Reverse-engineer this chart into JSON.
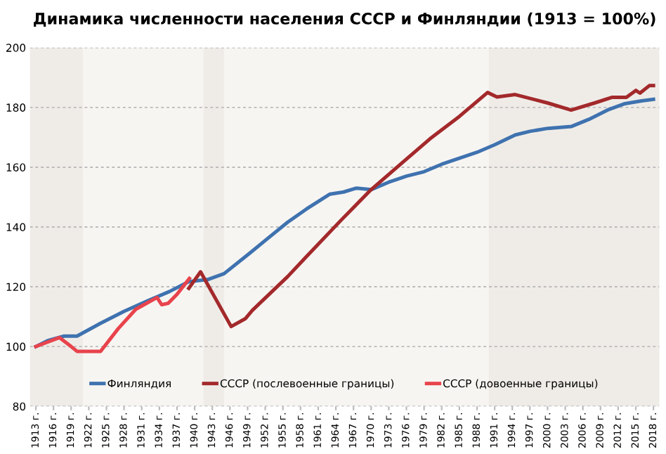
{
  "chart_data": {
    "type": "line",
    "title": "Динамика численности населения СССР и Финляндии (1913 = 100%)",
    "series": [
      {
        "name": "Финляндия",
        "color": "#3f72af",
        "x": [
          1913,
          1915,
          1917.8,
          1920,
          1924,
          1928,
          1932,
          1935.7,
          1939,
          1942.2,
          1945,
          1949.4,
          1952,
          1955.8,
          1959,
          1963,
          1965.3,
          1967.5,
          1970,
          1973,
          1976,
          1979,
          1982,
          1985,
          1988,
          1991,
          1994.5,
          1997,
          2000,
          2004,
          2007,
          2010.4,
          2013,
          2016,
          2018
        ],
        "values": [
          100,
          102,
          103.5,
          103.5,
          107.8,
          111.8,
          115.3,
          118.4,
          121.7,
          122.4,
          124.4,
          131.3,
          135.5,
          141.6,
          146,
          151,
          151.7,
          153,
          152.5,
          155,
          157,
          158.5,
          161,
          163,
          165,
          167.5,
          170.8,
          172,
          173,
          173.6,
          176,
          179.3,
          181.2,
          182.2,
          182.7
        ]
      },
      {
        "name": "СССР (послевоенные границы)",
        "color": "#a3292b",
        "x": [
          1939,
          1941,
          1946.2,
          1948.6,
          1949.8,
          1955.8,
          1958.9,
          1965,
          1970,
          1975,
          1980,
          1985,
          1989.8,
          1991.4,
          1994.5,
          2000,
          2004,
          2008,
          2011,
          2013.4,
          2015,
          2015.7,
          2017.3,
          2018
        ],
        "values": [
          119.5,
          125,
          106.7,
          109.3,
          112.1,
          123.4,
          129.9,
          142.5,
          152.5,
          161,
          169.5,
          177,
          185,
          183.5,
          184.3,
          181.5,
          179.1,
          181.5,
          183.4,
          183.4,
          185.7,
          184.8,
          187.3,
          187.3
        ]
      },
      {
        "name": "СССР (довоенные границы)",
        "color": "#e8434c",
        "x": [
          1913,
          1915,
          1917,
          1919,
          1920,
          1924,
          1927,
          1930,
          1933.6,
          1934.4,
          1935.5,
          1937,
          1939.1
        ],
        "values": [
          100,
          101.5,
          103,
          100,
          98.4,
          98.4,
          106,
          112.5,
          116.4,
          114,
          114.5,
          117.5,
          122.8
        ]
      }
    ],
    "xlim": [
      1912,
      2019
    ],
    "xticks": [
      {
        "value": 1913,
        "label": "1913 г."
      },
      {
        "value": 1916,
        "label": "1916 г."
      },
      {
        "value": 1919,
        "label": "1919 г."
      },
      {
        "value": 1922,
        "label": "1922 г."
      },
      {
        "value": 1925,
        "label": "1925 г."
      },
      {
        "value": 1928,
        "label": "1928 г."
      },
      {
        "value": 1931,
        "label": "1931 г."
      },
      {
        "value": 1934,
        "label": "1934 г."
      },
      {
        "value": 1937,
        "label": "1937 г."
      },
      {
        "value": 1940,
        "label": "1940 г."
      },
      {
        "value": 1943,
        "label": "1943 г."
      },
      {
        "value": 1946,
        "label": "1946 г."
      },
      {
        "value": 1949,
        "label": "1949 г."
      },
      {
        "value": 1952,
        "label": "1952 г."
      },
      {
        "value": 1955,
        "label": "1955 г."
      },
      {
        "value": 1958,
        "label": "1958 г."
      },
      {
        "value": 1961,
        "label": "1961 г."
      },
      {
        "value": 1964,
        "label": "1964 г."
      },
      {
        "value": 1967,
        "label": "1967 г."
      },
      {
        "value": 1970,
        "label": "1970 г."
      },
      {
        "value": 1973,
        "label": "1973 г."
      },
      {
        "value": 1976,
        "label": "1976 г."
      },
      {
        "value": 1979,
        "label": "1979 г."
      },
      {
        "value": 1982,
        "label": "1982 г."
      },
      {
        "value": 1985,
        "label": "1985 г."
      },
      {
        "value": 1988,
        "label": "1988 г."
      },
      {
        "value": 1991,
        "label": "1991 г."
      },
      {
        "value": 1994,
        "label": "1994 г."
      },
      {
        "value": 1997,
        "label": "1997 г."
      },
      {
        "value": 2000,
        "label": "2000 г."
      },
      {
        "value": 2003,
        "label": "2003 г."
      },
      {
        "value": 2006,
        "label": "2006 г."
      },
      {
        "value": 2009,
        "label": "2009 г."
      },
      {
        "value": 2012,
        "label": "2012 г."
      },
      {
        "value": 2015,
        "label": "2015 г."
      },
      {
        "value": 2018,
        "label": "2018 г."
      }
    ],
    "ylim": [
      80,
      200
    ],
    "yticks": [
      80,
      100,
      120,
      140,
      160,
      180,
      200
    ],
    "bands": [
      {
        "axis": "x",
        "from": 1912,
        "to": 1921,
        "color": "#efece8"
      },
      {
        "axis": "x",
        "from": 1941.5,
        "to": 1945,
        "color": "#efece8"
      },
      {
        "axis": "x",
        "from": 1990,
        "to": 2019,
        "color": "#efece8"
      }
    ],
    "grid": "y",
    "legend": "bottom",
    "marker": "none",
    "line_style": "solid"
  }
}
